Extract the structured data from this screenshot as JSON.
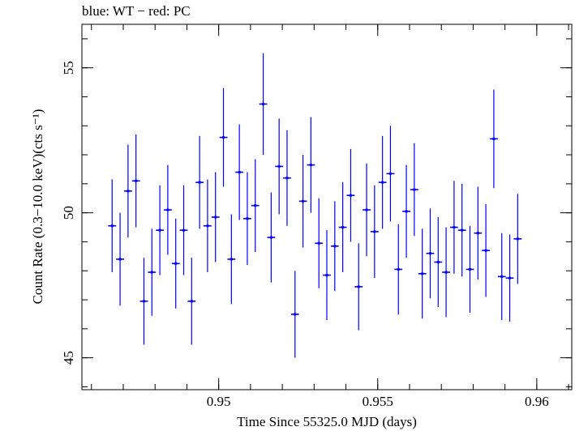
{
  "chart_data": {
    "type": "scatter",
    "title": "blue: WT − red: PC",
    "xlabel": "Time Since 55325.0 MJD (days)",
    "ylabel": "Count Rate (0.3−10.0 keV)(cts s⁻¹)",
    "xlim": [
      0.9457,
      0.9611
    ],
    "ylim": [
      43.9,
      56.5
    ],
    "xticks": [
      0.95,
      0.955,
      0.96
    ],
    "xtick_labels": [
      "0.95",
      "0.955",
      "0.96"
    ],
    "yticks": [
      45,
      50,
      55
    ],
    "ytick_labels": [
      "45",
      "50",
      "55"
    ],
    "x_minor_step": 0.001,
    "y_minor_step": 1,
    "grid": false,
    "series": [
      {
        "color": "#0000ff",
        "x": [
          0.94665,
          0.9469,
          0.94715,
          0.9474,
          0.94765,
          0.9479,
          0.94815,
          0.9484,
          0.94865,
          0.9489,
          0.94915,
          0.9494,
          0.94965,
          0.9499,
          0.95015,
          0.9504,
          0.95065,
          0.9509,
          0.95115,
          0.9514,
          0.95165,
          0.9519,
          0.95215,
          0.9524,
          0.95265,
          0.9529,
          0.95315,
          0.9534,
          0.95365,
          0.9539,
          0.95415,
          0.9544,
          0.95465,
          0.9549,
          0.95515,
          0.9554,
          0.95565,
          0.9559,
          0.95615,
          0.9564,
          0.95665,
          0.9569,
          0.95715,
          0.9574,
          0.95765,
          0.9579,
          0.95815,
          0.9584,
          0.95865,
          0.9589,
          0.95915,
          0.9594
        ],
        "y": [
          49.55,
          48.4,
          50.75,
          51.1,
          46.95,
          47.95,
          49.4,
          50.1,
          48.25,
          49.4,
          46.95,
          51.05,
          49.55,
          49.85,
          52.6,
          48.4,
          51.4,
          49.8,
          50.25,
          53.75,
          49.15,
          51.6,
          51.2,
          46.5,
          50.4,
          51.65,
          48.95,
          47.85,
          48.85,
          49.5,
          50.6,
          47.45,
          50.1,
          49.35,
          51.05,
          51.35,
          48.05,
          50.05,
          50.8,
          47.9,
          48.6,
          48.3,
          47.95,
          49.5,
          49.4,
          48.05,
          49.3,
          48.7,
          52.55,
          47.8,
          47.75,
          49.1
        ],
        "err": [
          1.6,
          1.6,
          1.6,
          1.6,
          1.5,
          1.5,
          1.55,
          1.55,
          1.55,
          1.55,
          1.5,
          1.6,
          1.6,
          1.55,
          1.7,
          1.55,
          1.65,
          1.6,
          1.6,
          1.75,
          1.55,
          1.65,
          1.65,
          1.5,
          1.6,
          1.65,
          1.55,
          1.55,
          1.55,
          1.55,
          1.6,
          1.5,
          1.6,
          1.6,
          1.6,
          1.65,
          1.55,
          1.6,
          1.6,
          1.55,
          1.55,
          1.55,
          1.55,
          1.6,
          1.6,
          1.5,
          1.6,
          1.6,
          1.7,
          1.5,
          1.5,
          1.55
        ],
        "xerr": 0.000125
      }
    ]
  }
}
